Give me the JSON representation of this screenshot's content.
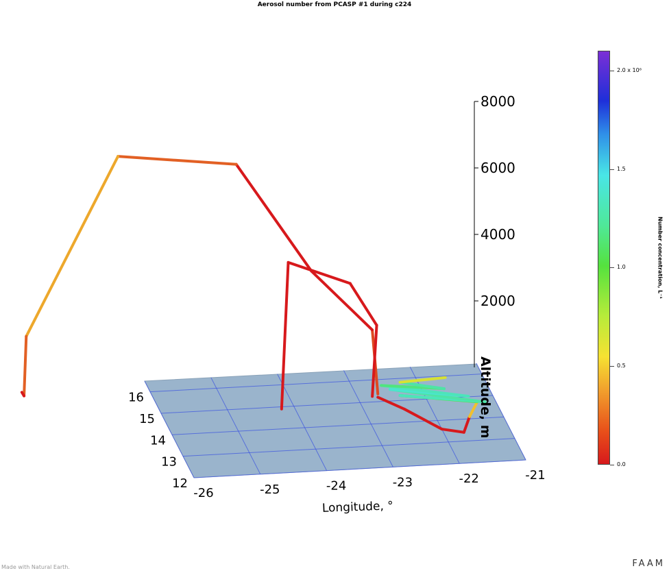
{
  "title": "Aerosol number from PCASP #1 during c224",
  "chart_data": {
    "type": "line",
    "projection": "3d",
    "xlabel": "Longitude, °",
    "ylabel": "",
    "zlabel": "Altitude, m",
    "xticks": [
      "-26",
      "-25",
      "-24",
      "-23",
      "-22",
      "-21"
    ],
    "yticks": [
      "12",
      "13",
      "14",
      "15",
      "16"
    ],
    "zticks": [
      "2000",
      "4000",
      "6000",
      "8000"
    ],
    "xlim": [
      -26,
      -21
    ],
    "ylim": [
      12,
      16.5
    ],
    "zlim": [
      0,
      8000
    ],
    "series": [
      {
        "points": [
          {
            "lon": -22.7,
            "lat": 15.2,
            "alt": 100,
            "c": 0.2
          },
          {
            "lon": -22.9,
            "lat": 14.5,
            "alt": 2500,
            "c": 0.0
          },
          {
            "lon": -23.8,
            "lat": 14.6,
            "alt": 4300,
            "c": 0.0
          },
          {
            "lon": -24.9,
            "lat": 14.8,
            "alt": 7500,
            "c": 0.0
          },
          {
            "lon": -26.6,
            "lat": 15.3,
            "alt": 7600,
            "c": 0.3
          },
          {
            "lon": -27.9,
            "lat": 15.8,
            "alt": 2000,
            "c": 0.3
          },
          {
            "lon": -27.9,
            "lat": 16.0,
            "alt": 80,
            "c": 0.0
          },
          {
            "lon": -27.9,
            "lat": 16.2,
            "alt": 60,
            "c": 0.0
          }
        ]
      },
      {
        "points": [
          {
            "lon": -22.8,
            "lat": 15.1,
            "alt": 100,
            "c": 0.0
          },
          {
            "lon": -22.8,
            "lat": 14.7,
            "alt": 2500,
            "c": 0.0
          },
          {
            "lon": -23.2,
            "lat": 14.7,
            "alt": 3800,
            "c": 0.0
          },
          {
            "lon": -24.1,
            "lat": 14.9,
            "alt": 4400,
            "c": 0.0
          },
          {
            "lon": -24.2,
            "lat": 14.9,
            "alt": 0,
            "c": 0.0
          }
        ]
      },
      {
        "points": [
          {
            "lon": -22.7,
            "lat": 15.2,
            "alt": 0,
            "c": 0.0
          },
          {
            "lon": -22.4,
            "lat": 14.6,
            "alt": 0,
            "c": 0.0
          },
          {
            "lon": -22.0,
            "lat": 13.6,
            "alt": 0,
            "c": 0.0
          },
          {
            "lon": -21.7,
            "lat": 13.4,
            "alt": 0,
            "c": 0.0
          },
          {
            "lon": -21.5,
            "lat": 14.1,
            "alt": 0,
            "c": 0.0
          },
          {
            "lon": -21.3,
            "lat": 14.6,
            "alt": 100,
            "c": 0.7
          },
          {
            "lon": -22.4,
            "lat": 15.0,
            "alt": 150,
            "c": 1.0
          },
          {
            "lon": -21.2,
            "lat": 14.5,
            "alt": 150,
            "c": 1.3
          },
          {
            "lon": -22.5,
            "lat": 15.3,
            "alt": 150,
            "c": 0.9
          },
          {
            "lon": -21.4,
            "lat": 14.8,
            "alt": 150,
            "c": 1.5
          },
          {
            "lon": -22.6,
            "lat": 15.5,
            "alt": 150,
            "c": 0.8
          },
          {
            "lon": -21.7,
            "lat": 15.2,
            "alt": 150,
            "c": 1.2
          },
          {
            "lon": -22.3,
            "lat": 15.6,
            "alt": 150,
            "c": 1.0
          },
          {
            "lon": -21.6,
            "lat": 15.7,
            "alt": 150,
            "c": 0.0
          }
        ]
      }
    ],
    "colorbar": {
      "label": "Number concentration, L⁻¹",
      "ticks": [
        "0.0",
        "0.5",
        "1.0",
        "1.5",
        "2.0 x 10⁶"
      ],
      "values": [
        0,
        0.5,
        1.0,
        1.5,
        2.0
      ],
      "range": [
        0,
        2.1
      ],
      "colors": [
        "#d7191c",
        "#f6e132",
        "#55e23e",
        "#49e6e6",
        "#1e2fd9",
        "#7b2fd6"
      ]
    },
    "surface_color": "#9ab4cc",
    "grid_color": "#3a52e0"
  },
  "credit": "Made with Natural Earth.",
  "brand": "FAAM"
}
